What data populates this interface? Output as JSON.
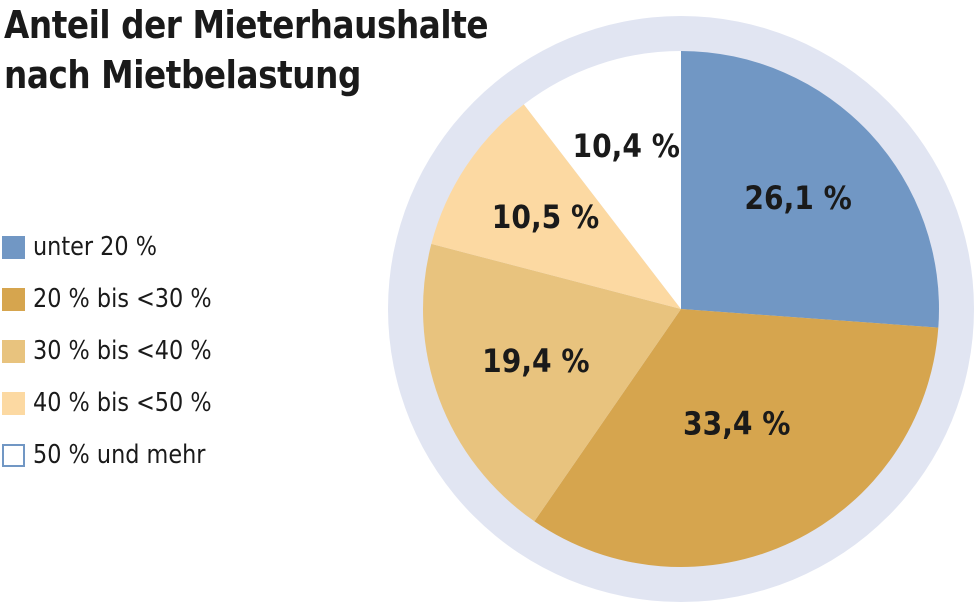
{
  "title_lines": [
    "Anteil der Mieterhaushalte",
    "nach Mietbelastung"
  ],
  "legend": [
    {
      "label": "unter 20 %",
      "color": "#7197c4",
      "outline": false
    },
    {
      "label": "20 % bis <30 %",
      "color": "#d6a54e",
      "outline": false
    },
    {
      "label": "30 % bis <40 %",
      "color": "#e8c37e",
      "outline": false
    },
    {
      "label": "40 % bis <50 %",
      "color": "#fcd9a2",
      "outline": false
    },
    {
      "label": "50 % und mehr",
      "color": "#ffffff",
      "outline": true,
      "outline_color": "#7197c4"
    }
  ],
  "chart_data": {
    "type": "pie",
    "title": "Anteil der Mieterhaushalte nach Mietbelastung",
    "legend_position": "left",
    "ring_color": "#e1e5f2",
    "slices": [
      {
        "name": "unter 20 %",
        "value": 26.1,
        "label": "26,1 %",
        "color": "#7197c4"
      },
      {
        "name": "20 % bis <30 %",
        "value": 33.4,
        "label": "33,4 %",
        "color": "#d6a54e"
      },
      {
        "name": "30 % bis <40 %",
        "value": 19.4,
        "label": "19,4 %",
        "color": "#e8c37e"
      },
      {
        "name": "40 % bis <50 %",
        "value": 10.5,
        "label": "10,5 %",
        "color": "#fcd9a2"
      },
      {
        "name": "50 % und mehr",
        "value": 10.4,
        "label": "10,4 %",
        "color": "#ffffff"
      }
    ]
  }
}
